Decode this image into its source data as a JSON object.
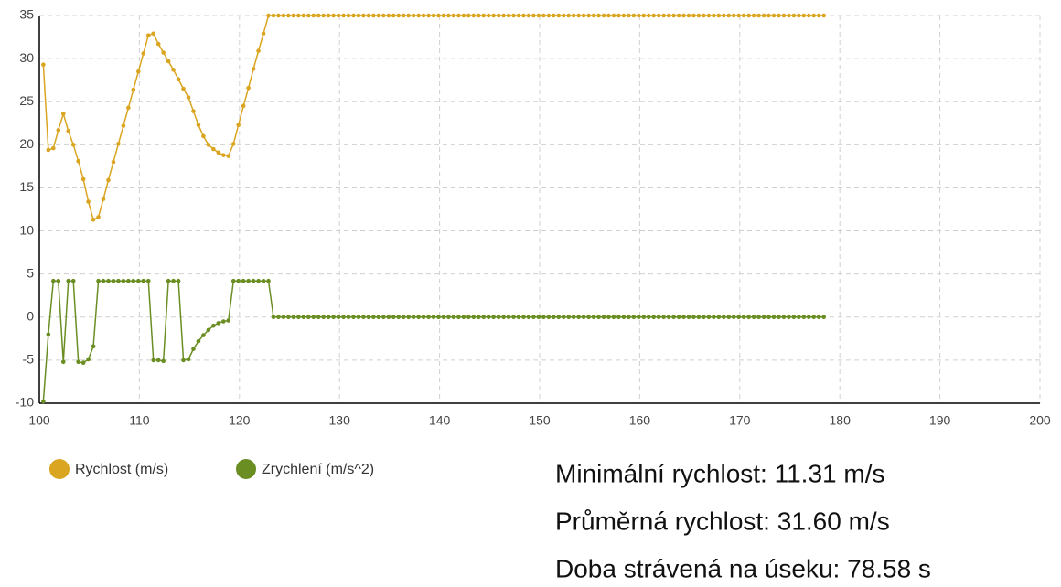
{
  "chart_data": {
    "type": "line",
    "x": [
      100.4,
      100.9,
      101.4,
      101.9,
      102.4,
      102.9,
      103.4,
      103.9,
      104.4,
      104.9,
      105.4,
      105.9,
      106.4,
      106.9,
      107.4,
      107.9,
      108.4,
      108.9,
      109.4,
      109.9,
      110.4,
      110.9,
      111.4,
      111.9,
      112.4,
      112.9,
      113.4,
      113.9,
      114.4,
      114.9,
      115.4,
      115.9,
      116.4,
      116.9,
      117.4,
      117.9,
      118.4,
      118.9,
      119.4,
      119.9,
      120.4,
      120.9,
      121.4,
      121.9,
      122.4,
      122.9,
      123.4,
      123.9,
      124.4,
      124.9,
      125.4,
      125.9,
      126.4,
      126.9,
      127.4,
      127.9,
      128.4,
      128.9,
      129.4,
      129.9,
      130.4,
      130.9,
      131.4,
      131.9,
      132.4,
      132.9,
      133.4,
      133.9,
      134.4,
      134.9,
      135.4,
      135.9,
      136.4,
      136.9,
      137.4,
      137.9,
      138.4,
      138.9,
      139.4,
      139.9,
      140.4,
      140.9,
      141.4,
      141.9,
      142.4,
      142.9,
      143.4,
      143.9,
      144.4,
      144.9,
      145.4,
      145.9,
      146.4,
      146.9,
      147.4,
      147.9,
      148.4,
      148.9,
      149.4,
      149.9,
      150.4,
      150.9,
      151.4,
      151.9,
      152.4,
      152.9,
      153.4,
      153.9,
      154.4,
      154.9,
      155.4,
      155.9,
      156.4,
      156.9,
      157.4,
      157.9,
      158.4,
      158.9,
      159.4,
      159.9,
      160.4,
      160.9,
      161.4,
      161.9,
      162.4,
      162.9,
      163.4,
      163.9,
      164.4,
      164.9,
      165.4,
      165.9,
      166.4,
      166.9,
      167.4,
      167.9,
      168.4,
      168.9,
      169.4,
      169.9,
      170.4,
      170.9,
      171.4,
      171.9,
      172.4,
      172.9,
      173.4,
      173.9,
      174.4,
      174.9,
      175.4,
      175.9,
      176.4,
      176.9,
      177.4,
      177.9,
      178.4
    ],
    "series": [
      {
        "name": "Rychlost (m/s)",
        "color": "#daa520",
        "values": [
          29.3,
          19.4,
          19.6,
          21.7,
          23.6,
          21.6,
          20.0,
          18.1,
          16.0,
          13.4,
          11.3,
          11.6,
          13.7,
          15.9,
          18.0,
          20.1,
          22.2,
          24.3,
          26.4,
          28.5,
          30.6,
          32.7,
          32.9,
          31.7,
          30.7,
          29.7,
          28.7,
          27.6,
          26.5,
          25.5,
          23.9,
          22.3,
          21.0,
          20.0,
          19.5,
          19.1,
          18.8,
          18.7,
          20.1,
          22.3,
          24.5,
          26.6,
          28.8,
          30.9,
          32.9,
          35,
          35,
          35,
          35,
          35,
          35,
          35,
          35,
          35,
          35,
          35,
          35,
          35,
          35,
          35,
          35,
          35,
          35,
          35,
          35,
          35,
          35,
          35,
          35,
          35,
          35,
          35,
          35,
          35,
          35,
          35,
          35,
          35,
          35,
          35,
          35,
          35,
          35,
          35,
          35,
          35,
          35,
          35,
          35,
          35,
          35,
          35,
          35,
          35,
          35,
          35,
          35,
          35,
          35,
          35,
          35,
          35,
          35,
          35,
          35,
          35,
          35,
          35,
          35,
          35,
          35,
          35,
          35,
          35,
          35,
          35,
          35,
          35,
          35,
          35,
          35,
          35,
          35,
          35,
          35,
          35,
          35,
          35,
          35,
          35,
          35,
          35,
          35,
          35,
          35,
          35,
          35,
          35,
          35,
          35,
          35,
          35,
          35,
          35,
          35,
          35,
          35,
          35,
          35,
          35,
          35,
          35,
          35,
          35,
          35,
          35,
          35
        ]
      },
      {
        "name": "Zrychlení (m/s^2)",
        "color": "#6b8e23",
        "values": [
          -9.8,
          -2.0,
          4.2,
          4.2,
          -5.2,
          4.2,
          4.2,
          -5.2,
          -5.3,
          -4.9,
          -3.4,
          4.2,
          4.2,
          4.2,
          4.2,
          4.2,
          4.2,
          4.2,
          4.2,
          4.2,
          4.2,
          4.2,
          -5.0,
          -5.0,
          -5.1,
          4.2,
          4.2,
          4.2,
          -5.0,
          -4.9,
          -3.7,
          -2.8,
          -2.1,
          -1.5,
          -1.0,
          -0.7,
          -0.5,
          -0.4,
          4.2,
          4.2,
          4.2,
          4.2,
          4.2,
          4.2,
          4.2,
          4.2,
          0,
          0,
          0,
          0,
          0,
          0,
          0,
          0,
          0,
          0,
          0,
          0,
          0,
          0,
          0,
          0,
          0,
          0,
          0,
          0,
          0,
          0,
          0,
          0,
          0,
          0,
          0,
          0,
          0,
          0,
          0,
          0,
          0,
          0,
          0,
          0,
          0,
          0,
          0,
          0,
          0,
          0,
          0,
          0,
          0,
          0,
          0,
          0,
          0,
          0,
          0,
          0,
          0,
          0,
          0,
          0,
          0,
          0,
          0,
          0,
          0,
          0,
          0,
          0,
          0,
          0,
          0,
          0,
          0,
          0,
          0,
          0,
          0,
          0,
          0,
          0,
          0,
          0,
          0,
          0,
          0,
          0,
          0,
          0,
          0,
          0,
          0,
          0,
          0,
          0,
          0,
          0,
          0,
          0,
          0,
          0,
          0,
          0,
          0,
          0,
          0,
          0,
          0,
          0,
          0,
          0,
          0,
          0,
          0,
          0,
          0
        ]
      }
    ],
    "xlim": [
      100,
      200
    ],
    "xticks": [
      100,
      110,
      120,
      130,
      140,
      150,
      160,
      170,
      180,
      190,
      200
    ],
    "ylim": [
      -10,
      35
    ],
    "yticks": [
      -10,
      -5,
      0,
      5,
      10,
      15,
      20,
      25,
      30,
      35
    ],
    "grid": true
  },
  "stats": [
    "Minimální rychlost: 11.31 m/s",
    "Průměrná rychlost: 31.60 m/s",
    "Doba strávená na úseku: 78.58 s"
  ]
}
